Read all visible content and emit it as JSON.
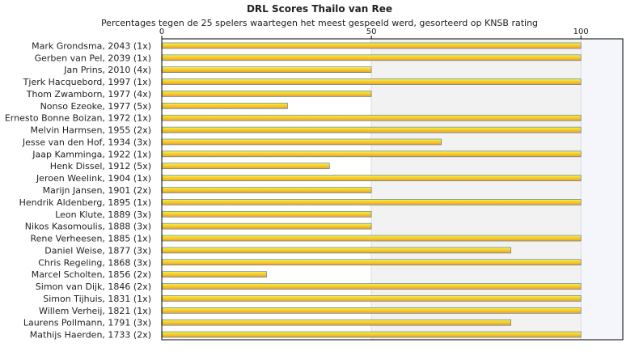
{
  "chart_data": {
    "type": "bar",
    "orientation": "horizontal",
    "title": "DRL Scores Thailo van Ree",
    "subtitle": "Percentages tegen de 25 spelers waartegen het meest gespeeld werd, gesorteerd op KNSB rating",
    "xlim": [
      0,
      110
    ],
    "x_ticks": [
      0,
      50,
      100
    ],
    "categories": [
      "Mark Grondsma, 2043 (1x)",
      "Gerben van Pel, 2039 (1x)",
      "Jan Prins, 2010 (4x)",
      "Tjerk Hacquebord, 1997 (1x)",
      "Thom Zwamborn, 1977 (4x)",
      "Nonso Ezeoke, 1977 (5x)",
      "Ernesto Bonne Boizan, 1972 (1x)",
      "Melvin Harmsen, 1955 (2x)",
      "Jesse van den Hof, 1934 (3x)",
      "Jaap Kamminga, 1922 (1x)",
      "Henk Dissel, 1912 (5x)",
      "Jeroen Weelink, 1904 (1x)",
      "Marijn Jansen, 1901 (2x)",
      "Hendrik Aldenberg, 1895 (1x)",
      "Leon Klute, 1889 (3x)",
      "Nikos Kasomoulis, 1888 (3x)",
      "Rene Verheesen, 1885 (1x)",
      "Daniel Weise, 1877 (3x)",
      "Chris Regeling, 1868 (3x)",
      "Marcel Scholten, 1856 (2x)",
      "Simon van Dijk, 1846 (2x)",
      "Simon Tijhuis, 1831 (1x)",
      "Willem Verheij, 1821 (1x)",
      "Laurens Pollmann, 1791 (3x)",
      "Mathijs Haerden, 1733 (2x)"
    ],
    "values": [
      100,
      100,
      50,
      100,
      50,
      30,
      100,
      100,
      66.7,
      100,
      40,
      100,
      50,
      100,
      50,
      50,
      100,
      83.3,
      100,
      25,
      100,
      100,
      100,
      83.3,
      100
    ],
    "colors": {
      "bar_top": "#f5f542",
      "bar_bottom": "#f0a020",
      "bar_border": "#4a6fa5",
      "band_alt": "#f2f2f2",
      "band_edge": "#f5f6fb"
    }
  }
}
